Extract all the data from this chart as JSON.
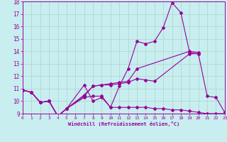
{
  "xlabel": "Windchill (Refroidissement éolien,°C)",
  "xlim": [
    0,
    23
  ],
  "ylim": [
    9,
    18
  ],
  "yticks": [
    9,
    10,
    11,
    12,
    13,
    14,
    15,
    16,
    17,
    18
  ],
  "xticks": [
    0,
    1,
    2,
    3,
    4,
    5,
    6,
    7,
    8,
    9,
    10,
    11,
    12,
    13,
    14,
    15,
    16,
    17,
    18,
    19,
    20,
    21,
    22,
    23
  ],
  "background_color": "#c8eef0",
  "line_color": "#990099",
  "grid_color": "#aad4cc",
  "line_main_x": [
    0,
    1,
    2,
    3,
    4,
    5,
    7,
    8,
    9,
    10,
    11,
    12,
    13,
    14,
    15,
    16,
    17,
    18,
    19,
    20,
    21,
    22,
    23
  ],
  "line_main_y": [
    10.9,
    10.7,
    9.9,
    10.0,
    8.8,
    9.4,
    11.3,
    10.0,
    10.3,
    9.5,
    11.2,
    12.6,
    14.8,
    14.6,
    14.8,
    15.9,
    17.9,
    17.1,
    13.9,
    13.8,
    10.4,
    10.3,
    9.1
  ],
  "line2_x": [
    0,
    1,
    2,
    3,
    4,
    5,
    7,
    8,
    9,
    10,
    11,
    12,
    13,
    19,
    20
  ],
  "line2_y": [
    10.9,
    10.7,
    9.9,
    10.0,
    8.8,
    9.4,
    10.4,
    11.2,
    11.3,
    11.4,
    11.5,
    11.6,
    12.6,
    14.0,
    13.9
  ],
  "line3_x": [
    0,
    1,
    2,
    3,
    4,
    5,
    7,
    8,
    9,
    10,
    11,
    12,
    13,
    14,
    15,
    19,
    20
  ],
  "line3_y": [
    10.9,
    10.7,
    9.9,
    10.0,
    8.8,
    9.4,
    10.5,
    11.2,
    11.3,
    11.3,
    11.4,
    11.5,
    11.8,
    11.7,
    11.6,
    13.8,
    13.8
  ],
  "line_flat_x": [
    0,
    1,
    2,
    3,
    4,
    5,
    7,
    8,
    9,
    10,
    11,
    12,
    13,
    14,
    15,
    16,
    17,
    18,
    19,
    20,
    21,
    22,
    23
  ],
  "line_flat_y": [
    10.9,
    10.7,
    9.9,
    10.0,
    8.8,
    9.4,
    10.3,
    10.4,
    10.4,
    9.5,
    9.5,
    9.5,
    9.5,
    9.5,
    9.4,
    9.4,
    9.3,
    9.3,
    9.2,
    9.1,
    9.0,
    9.0,
    9.0
  ]
}
